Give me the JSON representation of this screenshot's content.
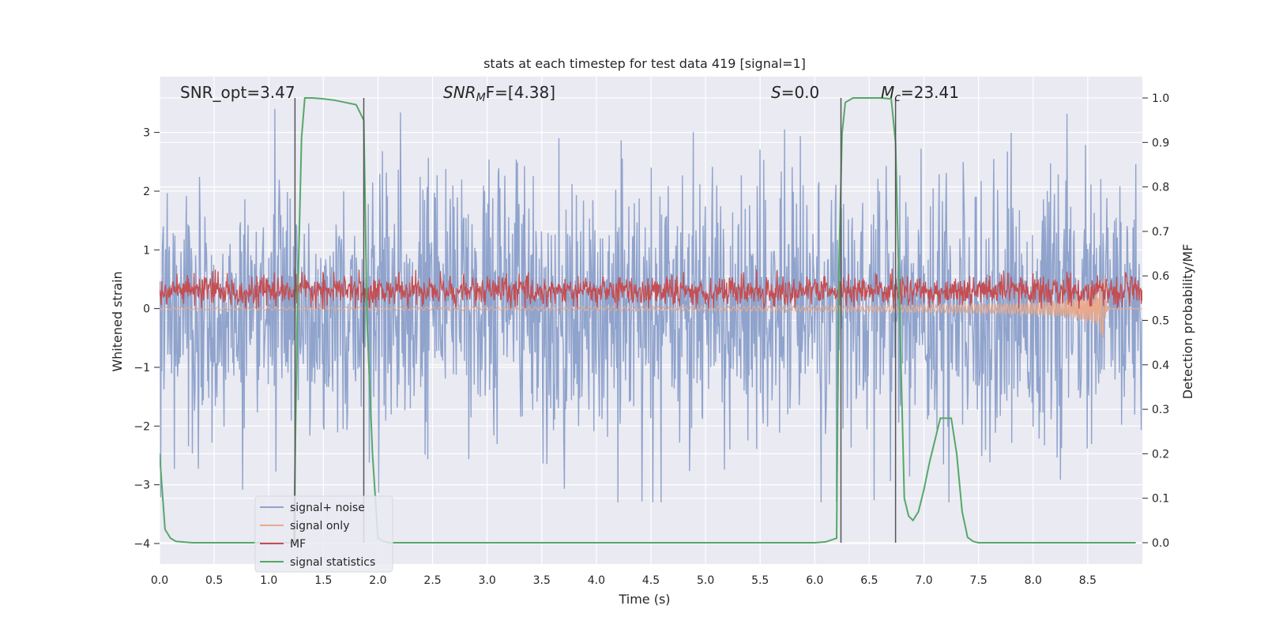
{
  "chart_data": {
    "type": "line",
    "title": "stats at each timestep for test data 419 [signal=1]",
    "xlabel": "Time (s)",
    "ylabel": "Whitened strain",
    "y2label": "Detection probability/MF",
    "xlim": [
      0,
      9
    ],
    "ylim": [
      -4.35,
      3.95
    ],
    "y2lim": [
      -0.048,
      1.048
    ],
    "xticks": [
      "0.0",
      "0.5",
      "1.0",
      "1.5",
      "2.0",
      "2.5",
      "3.0",
      "3.5",
      "4.0",
      "4.5",
      "5.0",
      "5.5",
      "6.0",
      "6.5",
      "7.0",
      "7.5",
      "8.0",
      "8.5"
    ],
    "yticks": [
      "3",
      "2",
      "1",
      "0",
      "−1",
      "−2",
      "−3",
      "−4"
    ],
    "y2ticks": [
      "1.0",
      "0.9",
      "0.8",
      "0.7",
      "0.6",
      "0.5",
      "0.4",
      "0.3",
      "0.2",
      "0.1",
      "0.0"
    ],
    "grid": true,
    "legend_position": "lower-left",
    "annotations": {
      "snr_opt": "SNR_opt=3.47",
      "snr_mf_sym": "SNR",
      "snr_mf_sub": "M",
      "snr_mf_rest": "F=[4.38]",
      "s_sym": "S",
      "s_rest": "=0.0",
      "mc_sym": "M",
      "mc_sub": "c",
      "mc_rest": "=23.41"
    },
    "vertical_lines_x": [
      1.24,
      1.87,
      6.24,
      6.74
    ],
    "series": [
      {
        "name": "signal+ noise",
        "color": "#8fa3cc",
        "noise_amplitude_range": [
          -3.3,
          3.4
        ]
      },
      {
        "name": "signal only",
        "color": "#e8a98c",
        "chirp_peak_time": 8.65,
        "chirp_peak_amplitude": 0.7
      },
      {
        "name": "MF",
        "color": "#c44e52",
        "value_range": [
          0.0,
          0.7
        ]
      },
      {
        "name": "signal statistics",
        "color": "#55a868",
        "x": [
          0.0,
          0.05,
          0.1,
          0.15,
          0.2,
          0.3,
          0.5,
          1.0,
          1.1,
          1.2,
          1.23,
          1.26,
          1.3,
          1.33,
          1.4,
          1.5,
          1.6,
          1.7,
          1.8,
          1.87,
          1.9,
          1.95,
          2.0,
          2.05,
          2.1,
          2.2,
          3.0,
          4.0,
          5.0,
          6.0,
          6.1,
          6.2,
          6.22,
          6.25,
          6.28,
          6.35,
          6.5,
          6.6,
          6.7,
          6.74,
          6.78,
          6.82,
          6.86,
          6.9,
          6.95,
          7.0,
          7.05,
          7.1,
          7.15,
          7.2,
          7.25,
          7.3,
          7.35,
          7.4,
          7.45,
          7.5,
          7.55,
          7.6,
          8.0,
          8.5,
          8.94
        ],
        "y": [
          0.2,
          0.03,
          0.01,
          0.003,
          0.002,
          0.0,
          0.0,
          0.0,
          0.0,
          0.0,
          0.0,
          0.5,
          0.91,
          1.0,
          1.0,
          0.998,
          0.995,
          0.99,
          0.985,
          0.95,
          0.5,
          0.2,
          0.01,
          0.003,
          0.0,
          0.0,
          0.0,
          0.0,
          0.0,
          0.0,
          0.002,
          0.01,
          0.6,
          0.92,
          0.99,
          1.0,
          1.0,
          1.0,
          0.998,
          0.9,
          0.5,
          0.1,
          0.06,
          0.05,
          0.07,
          0.12,
          0.18,
          0.23,
          0.28,
          0.28,
          0.28,
          0.2,
          0.07,
          0.012,
          0.003,
          0.0,
          0.0,
          0.0,
          0.0,
          0.0,
          0.0
        ]
      }
    ]
  }
}
